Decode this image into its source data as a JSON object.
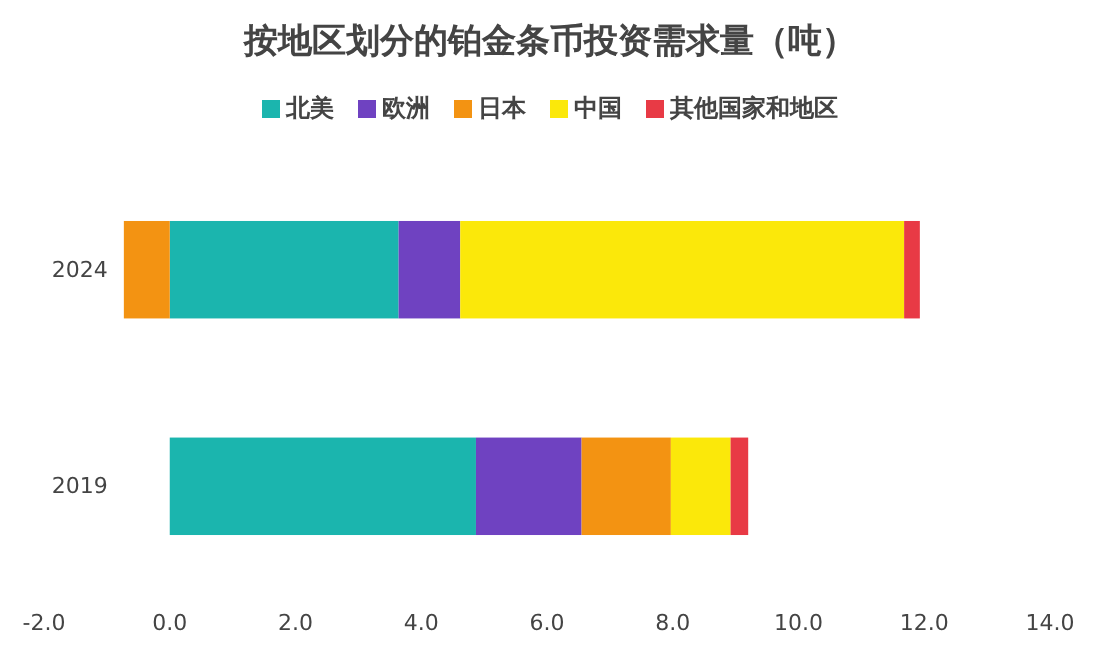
{
  "chart_data": {
    "type": "bar",
    "title": "按地区划分的铂金条币投资需求量（吨）",
    "orientation": "horizontal",
    "stacked": true,
    "categories": [
      "2024",
      "2019"
    ],
    "series": [
      {
        "name": "北美",
        "color": "#1bb5ae",
        "values": [
          3.64,
          4.87
        ]
      },
      {
        "name": "欧洲",
        "color": "#6f42c1",
        "values": [
          0.98,
          1.68
        ]
      },
      {
        "name": "日本",
        "color": "#f39312",
        "values": [
          -0.73,
          1.42
        ]
      },
      {
        "name": "中国",
        "color": "#fbe80a",
        "values": [
          7.06,
          0.95
        ]
      },
      {
        "name": "其他国家和地区",
        "color": "#e83a45",
        "values": [
          0.25,
          0.28
        ]
      }
    ],
    "xlim": [
      -2,
      14
    ],
    "xticks": [
      {
        "value": -2,
        "label": "-2.0"
      },
      {
        "value": 0,
        "label": "0.0"
      },
      {
        "value": 2,
        "label": "2.0"
      },
      {
        "value": 4,
        "label": "4.0"
      },
      {
        "value": 6,
        "label": "6.0"
      },
      {
        "value": 8,
        "label": "8.0"
      },
      {
        "value": 10,
        "label": "10.0"
      },
      {
        "value": 12,
        "label": "12.0"
      },
      {
        "value": 14,
        "label": "14.0"
      }
    ],
    "legend": "top",
    "grid": false
  }
}
